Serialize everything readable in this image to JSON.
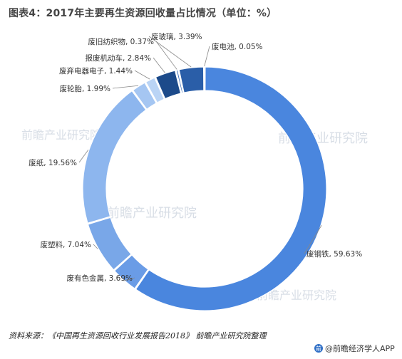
{
  "chart_data": {
    "type": "pie",
    "donut": true,
    "title": "图表4：2017年主要再生资源回收量占比情况（单位：%）",
    "slices": [
      {
        "label": "废钢铁, 59.63%",
        "value": 59.63,
        "color": "#4a86de"
      },
      {
        "label": "废有色金属, 3.69%",
        "value": 3.69,
        "color": "#6a9ce6"
      },
      {
        "label": "废塑料, 7.04%",
        "value": 7.04,
        "color": "#79a7e8"
      },
      {
        "label": "废纸, 19.56%",
        "value": 19.56,
        "color": "#8db6ee"
      },
      {
        "label": "废轮胎, 1.99%",
        "value": 1.99,
        "color": "#a5c6f2"
      },
      {
        "label": "废弃电器电子, 1.44%",
        "value": 1.44,
        "color": "#bad4f5"
      },
      {
        "label": "报废机动车, 2.84%",
        "value": 2.84,
        "color": "#1c4a8a"
      },
      {
        "label": "废旧纺织物, 0.37%",
        "value": 0.37,
        "color": "#3c6cb8"
      },
      {
        "label": "废玻璃, 3.39%",
        "value": 3.39,
        "color": "#2a5ea8"
      },
      {
        "label": "废电池, 0.05%",
        "value": 0.05,
        "color": "#6fa0e4"
      }
    ]
  },
  "source": "资料来源：《中国再生资源回收行业发展报告2018》 前瞻产业研究院整理",
  "watermark": "前瞻产业研究院",
  "brand": {
    "mark": "前",
    "text": "@前瞻经济学人APP"
  }
}
